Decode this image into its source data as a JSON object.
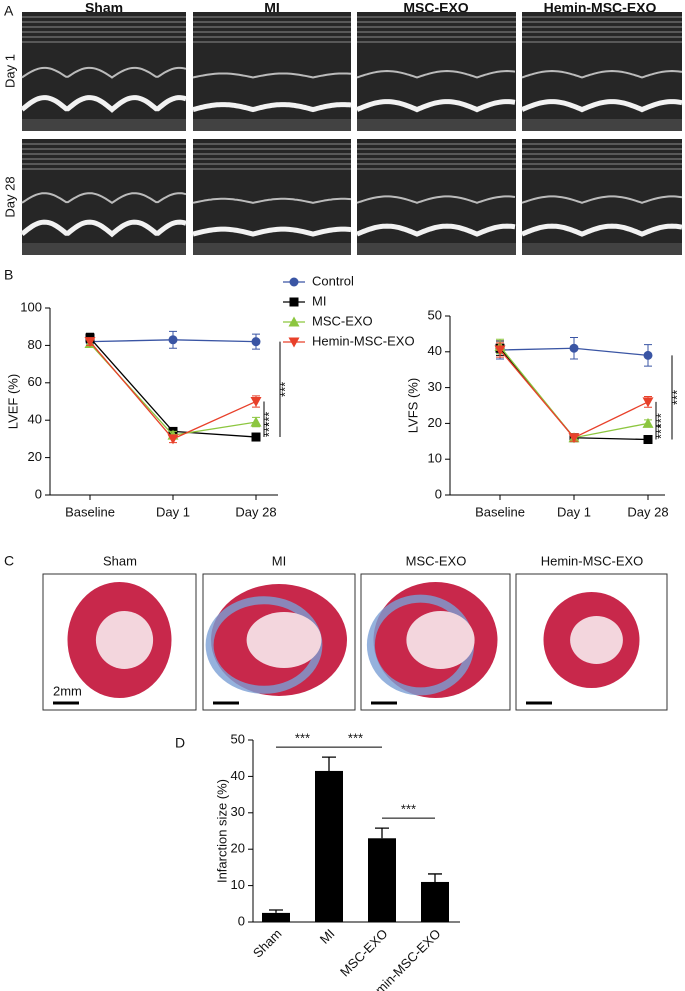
{
  "panel_a": {
    "label": "A",
    "columns": [
      "Sham",
      "MI",
      "MSC-EXO",
      "Hemin-MSC-EXO"
    ],
    "rows": [
      "Day 1",
      "Day 28"
    ]
  },
  "panel_c": {
    "label": "C",
    "columns": [
      "Sham",
      "MI",
      "MSC-EXO",
      "Hemin-MSC-EXO"
    ],
    "scale_bar": "2mm"
  },
  "chart_data": [
    {
      "type": "line",
      "panel": "B",
      "ylabel": "LVEF (%)",
      "categories": [
        "Baseline",
        "Day 1",
        "Day 28"
      ],
      "ylim": [
        0,
        100
      ],
      "yticks": [
        0,
        20,
        40,
        60,
        80,
        100
      ],
      "series": [
        {
          "name": "Control",
          "color": "#3a55a4",
          "marker": "circle",
          "values": [
            82,
            83,
            82
          ],
          "errors": [
            2,
            4.5,
            4
          ]
        },
        {
          "name": "MI",
          "color": "#000000",
          "marker": "square",
          "values": [
            84,
            34,
            31
          ],
          "errors": [
            2.5,
            2,
            1.5
          ]
        },
        {
          "name": "MSC-EXO",
          "color": "#8cc63f",
          "marker": "triangle",
          "values": [
            81,
            32,
            39
          ],
          "errors": [
            2,
            2,
            2.5
          ]
        },
        {
          "name": "Hemin-MSC-EXO",
          "color": "#e8402a",
          "marker": "triangle-down",
          "values": [
            82,
            30,
            50
          ],
          "errors": [
            2,
            2,
            3
          ]
        }
      ],
      "annotations": [
        {
          "text": "***",
          "between": [
            3,
            1
          ]
        },
        {
          "text": "***",
          "between": [
            2,
            1
          ]
        },
        {
          "text": "***",
          "between": [
            0,
            1
          ]
        }
      ]
    },
    {
      "type": "line",
      "ylabel": "LVFS (%)",
      "categories": [
        "Baseline",
        "Day 1",
        "Day 28"
      ],
      "ylim": [
        0,
        50
      ],
      "yticks": [
        0,
        10,
        20,
        30,
        40,
        50
      ],
      "series": [
        {
          "color": "#3a55a4",
          "marker": "circle",
          "values": [
            40.5,
            41,
            39
          ],
          "errors": [
            2.5,
            3,
            3
          ]
        },
        {
          "color": "#000000",
          "marker": "square",
          "values": [
            41,
            16,
            15.5
          ],
          "errors": [
            2,
            1,
            0.8
          ]
        },
        {
          "color": "#8cc63f",
          "marker": "triangle",
          "values": [
            41.5,
            16,
            20
          ],
          "errors": [
            2,
            1,
            1
          ]
        },
        {
          "color": "#e8402a",
          "marker": "triangle-down",
          "values": [
            40.5,
            16,
            26
          ],
          "errors": [
            2,
            1,
            1.5
          ]
        }
      ],
      "annotations": [
        {
          "text": "***",
          "between": [
            3,
            1
          ]
        },
        {
          "text": "***",
          "between": [
            2,
            1
          ]
        },
        {
          "text": "***",
          "between": [
            0,
            1
          ]
        }
      ]
    },
    {
      "type": "bar",
      "panel": "D",
      "ylabel": "Infarction size (%)",
      "categories": [
        "Sham",
        "MI",
        "MSC-EXO",
        "Hemin-MSC-EXO"
      ],
      "values": [
        2.5,
        41.5,
        23,
        11
      ],
      "errors": [
        0.8,
        3.8,
        2.8,
        2.2
      ],
      "color": "#000000",
      "ylim": [
        0,
        50
      ],
      "yticks": [
        0,
        10,
        20,
        30,
        40,
        50
      ],
      "annotations": [
        {
          "text": "***",
          "between": [
            0,
            1
          ]
        },
        {
          "text": "***",
          "between": [
            1,
            2
          ]
        },
        {
          "text": "***",
          "between": [
            2,
            3
          ]
        }
      ]
    }
  ]
}
